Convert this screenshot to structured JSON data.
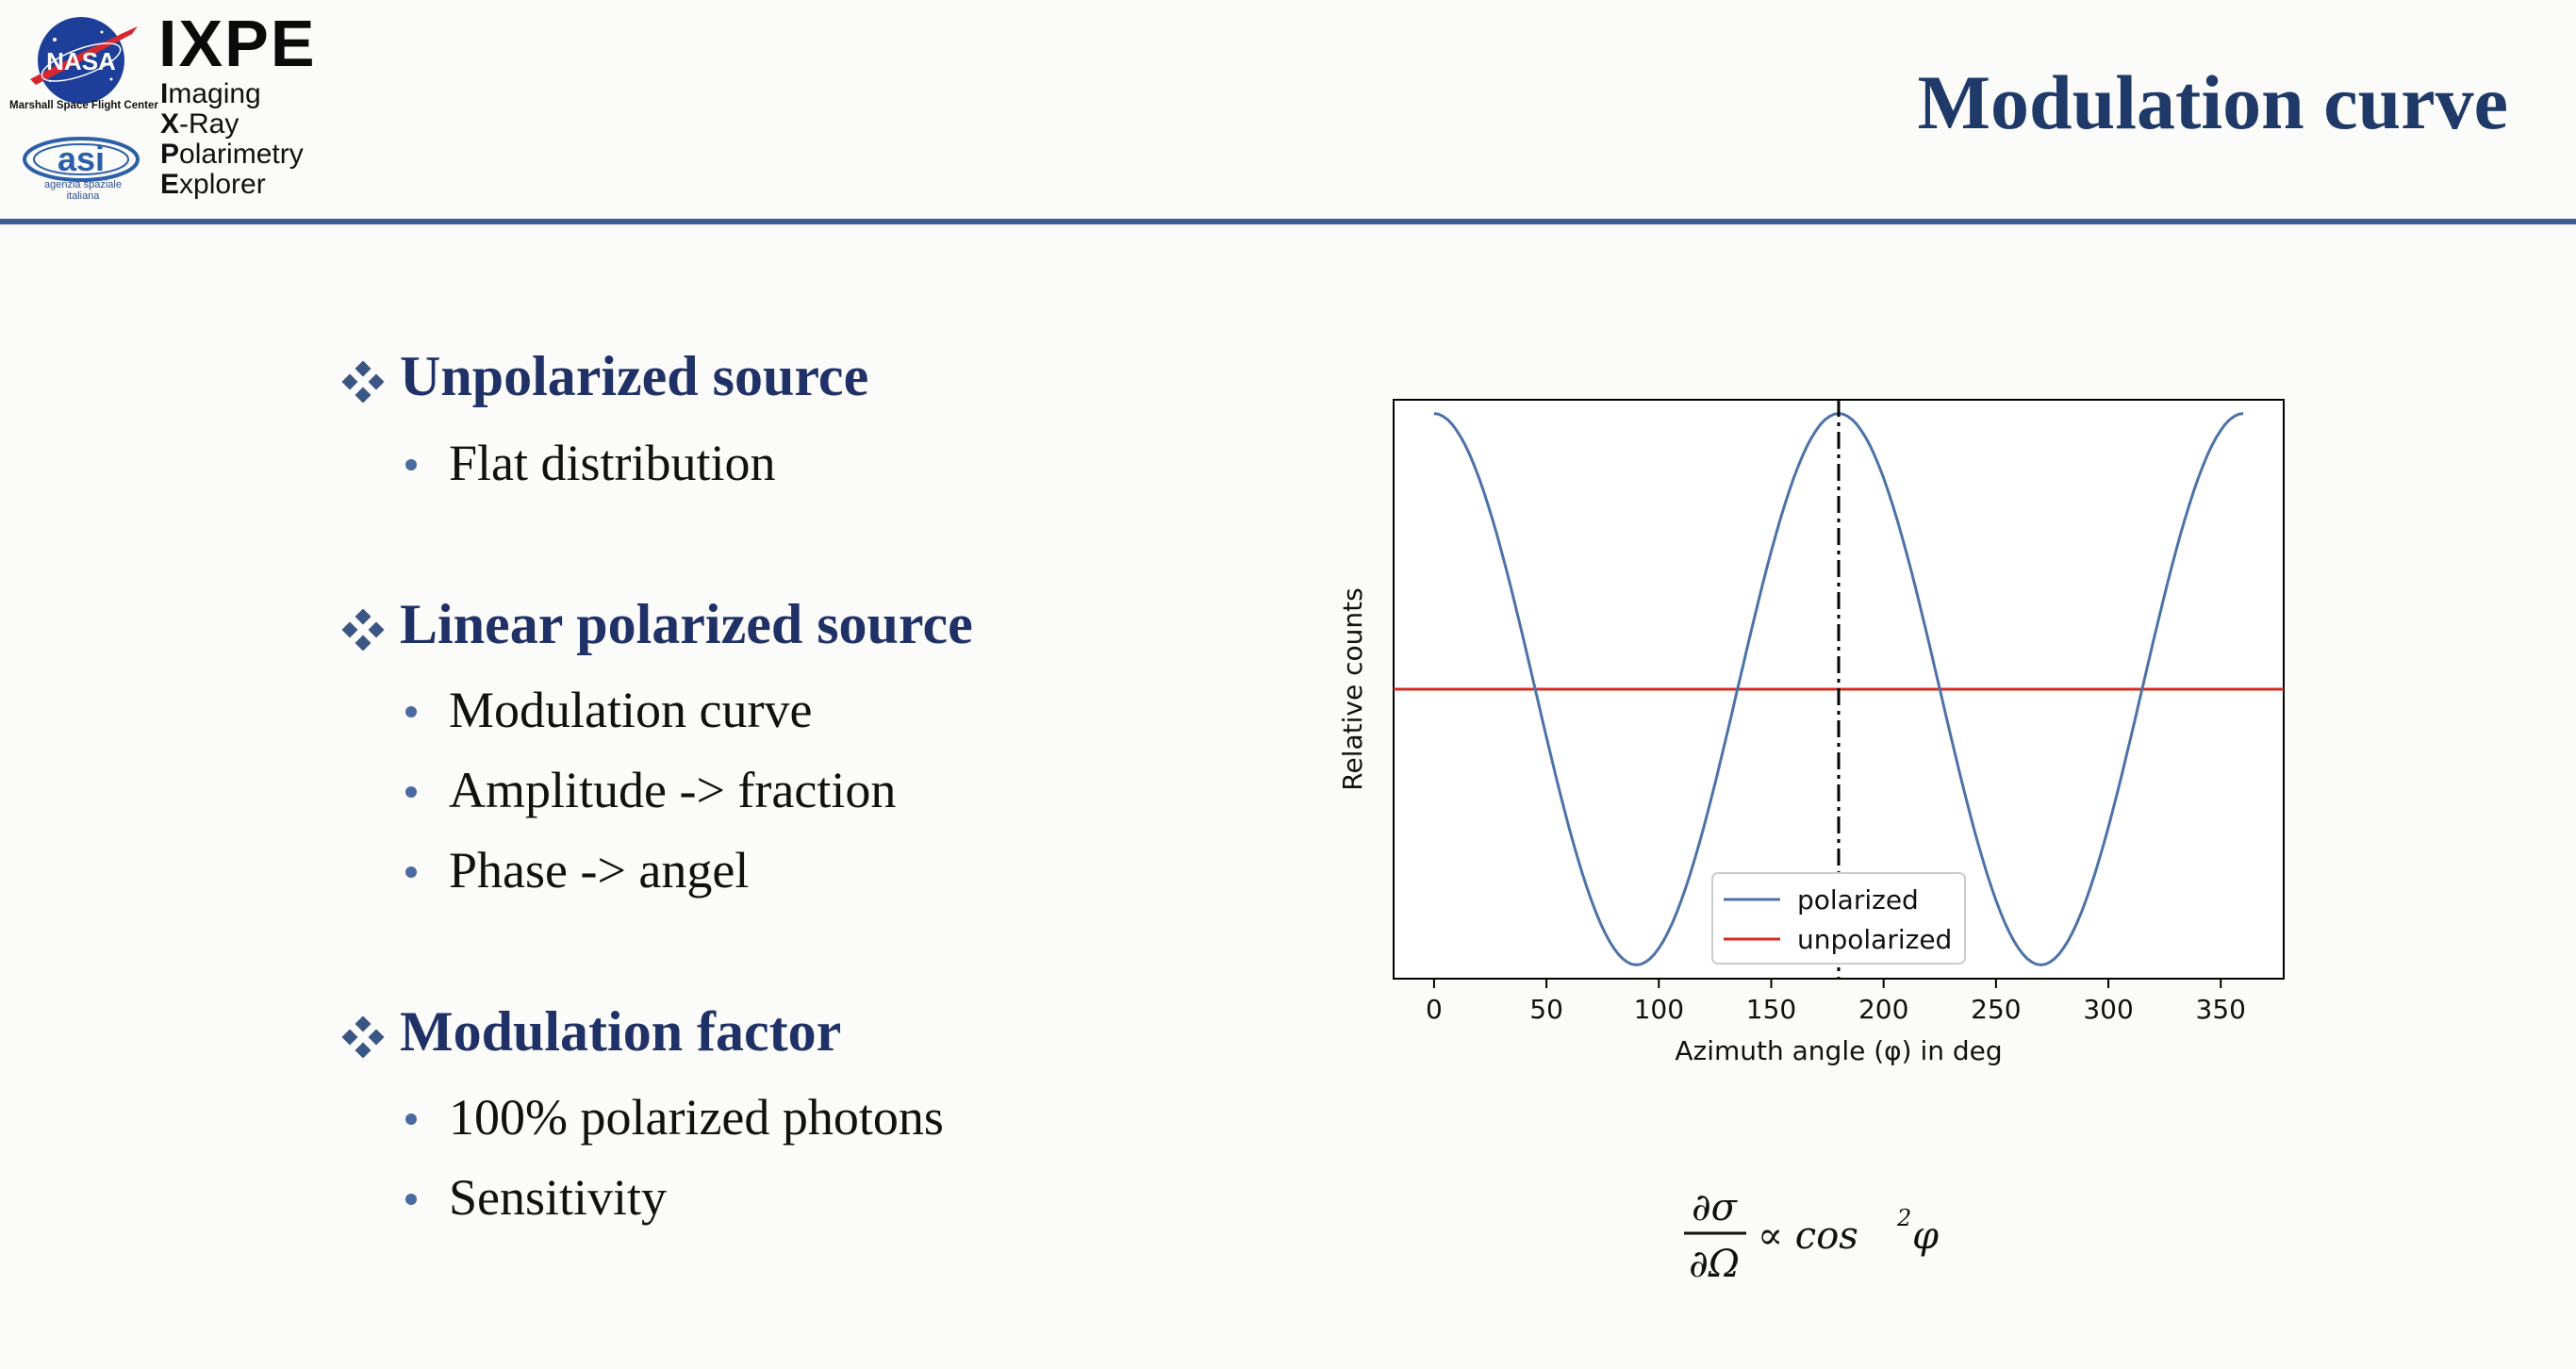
{
  "header": {
    "nasa_logo_text": "NASA",
    "msfc_text": "Marshall Space Flight Center",
    "asi_logo_text": "asi",
    "asi_text_1": "agenzia spaziale",
    "asi_text_2": "italiana",
    "ixpe": "IXPE",
    "ixpe_lines": [
      {
        "initial": "I",
        "rest": "maging"
      },
      {
        "initial": "X",
        "rest": "-Ray"
      },
      {
        "initial": "P",
        "rest": "olarimetry"
      },
      {
        "initial": "E",
        "rest": "xplorer"
      }
    ],
    "slide_title": "Modulation curve"
  },
  "sections": [
    {
      "heading": "Unpolarized source",
      "items": [
        "Flat distribution"
      ]
    },
    {
      "heading": "Linear polarized source",
      "items": [
        "Modulation curve",
        "Amplitude -> fraction",
        "Phase -> angel"
      ]
    },
    {
      "heading": "Modulation factor",
      "items": [
        "100% polarized photons",
        "Sensitivity"
      ]
    }
  ],
  "formula": {
    "numerator": "∂σ",
    "denominator": "∂Ω",
    "rhs": "∝ cos",
    "exponent": "2",
    "tail": "φ"
  },
  "chart_data": {
    "type": "line",
    "xlabel": "Azimuth angle (φ) in deg",
    "ylabel": "Relative counts",
    "xlim": [
      -18,
      378
    ],
    "ylim": [
      -1.05,
      1.05
    ],
    "xticks": [
      0,
      50,
      100,
      150,
      200,
      250,
      300,
      350
    ],
    "yticks_visible": false,
    "vline_x": 180,
    "legend_position": "bottom-center",
    "colors": {
      "polarized": "#4c72a8",
      "unpolarized": "#d62b22",
      "vline": "#000000"
    },
    "series": [
      {
        "name": "polarized",
        "function": "cos(2·φ)",
        "x_range": [
          0,
          360
        ],
        "maxima_at": [
          0,
          180,
          360
        ],
        "minima_at": [
          90,
          270
        ],
        "y_max": 1,
        "y_min": -1
      },
      {
        "name": "unpolarized",
        "constant_y": 0
      }
    ]
  }
}
